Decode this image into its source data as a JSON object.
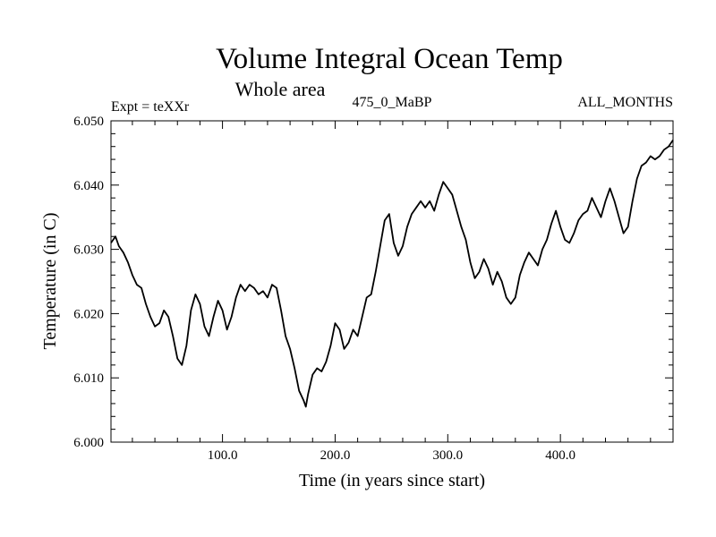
{
  "chart_data": {
    "type": "line",
    "title": "Volume Integral Ocean Temp",
    "subtitle": "Whole area",
    "expt_label": "Expt = teXXr",
    "run_label": "475_0_MaBP",
    "months_label": "ALL_MONTHS",
    "xlabel": "Time (in years since start)",
    "ylabel": "Temperature (in C)",
    "xlim": [
      1,
      500
    ],
    "ylim": [
      6.0,
      6.05
    ],
    "x_ticks": [
      100,
      200,
      300,
      400
    ],
    "x_tick_labels": [
      "100.0",
      "200.0",
      "300.0",
      "400.0"
    ],
    "y_ticks": [
      6.0,
      6.01,
      6.02,
      6.03,
      6.04,
      6.05
    ],
    "y_tick_labels": [
      "6.000",
      "6.010",
      "6.020",
      "6.030",
      "6.040",
      "6.050"
    ],
    "series": [
      {
        "name": "teXXr",
        "x": [
          1,
          5,
          8,
          12,
          16,
          20,
          24,
          28,
          32,
          36,
          40,
          44,
          48,
          52,
          56,
          60,
          64,
          68,
          72,
          76,
          80,
          84,
          88,
          92,
          96,
          100,
          104,
          108,
          112,
          116,
          120,
          124,
          128,
          132,
          136,
          140,
          144,
          148,
          152,
          156,
          160,
          164,
          168,
          172,
          174,
          176,
          180,
          184,
          188,
          192,
          196,
          200,
          204,
          208,
          212,
          216,
          220,
          224,
          228,
          232,
          236,
          240,
          244,
          248,
          252,
          256,
          260,
          264,
          268,
          272,
          276,
          280,
          284,
          288,
          292,
          296,
          300,
          304,
          308,
          312,
          316,
          320,
          324,
          328,
          332,
          336,
          340,
          344,
          348,
          352,
          356,
          360,
          364,
          368,
          372,
          376,
          380,
          384,
          388,
          392,
          396,
          400,
          404,
          408,
          412,
          416,
          420,
          424,
          428,
          432,
          436,
          440,
          444,
          448,
          452,
          456,
          460,
          464,
          468,
          472,
          476,
          480,
          484,
          488,
          492,
          496,
          500
        ],
        "values": [
          6.031,
          6.032,
          6.0305,
          6.0295,
          6.028,
          6.026,
          6.0245,
          6.024,
          6.0215,
          6.0195,
          6.018,
          6.0185,
          6.0205,
          6.0195,
          6.0165,
          6.013,
          6.012,
          6.015,
          6.0205,
          6.023,
          6.0215,
          6.018,
          6.0165,
          6.0195,
          6.022,
          6.0205,
          6.0175,
          6.0195,
          6.0225,
          6.0245,
          6.0235,
          6.0245,
          6.024,
          6.023,
          6.0235,
          6.0225,
          6.0245,
          6.024,
          6.0205,
          6.0165,
          6.0145,
          6.0115,
          6.008,
          6.0065,
          6.0055,
          6.0075,
          6.0105,
          6.0115,
          6.011,
          6.0125,
          6.015,
          6.0185,
          6.0175,
          6.0145,
          6.0155,
          6.0175,
          6.0165,
          6.0195,
          6.0225,
          6.023,
          6.0265,
          6.0305,
          6.0345,
          6.0355,
          6.031,
          6.029,
          6.0305,
          6.0335,
          6.0355,
          6.0365,
          6.0375,
          6.0365,
          6.0375,
          6.036,
          6.0385,
          6.0405,
          6.0395,
          6.0385,
          6.036,
          6.0335,
          6.0315,
          6.028,
          6.0255,
          6.0265,
          6.0285,
          6.027,
          6.0245,
          6.0265,
          6.025,
          6.0225,
          6.0215,
          6.0225,
          6.026,
          6.028,
          6.0295,
          6.0285,
          6.0275,
          6.03,
          6.0315,
          6.034,
          6.036,
          6.0335,
          6.0315,
          6.031,
          6.0325,
          6.0345,
          6.0355,
          6.036,
          6.038,
          6.0365,
          6.035,
          6.0375,
          6.0395,
          6.0375,
          6.035,
          6.0325,
          6.0335,
          6.0375,
          6.041,
          6.043,
          6.0435,
          6.0445,
          6.044,
          6.0445,
          6.0455,
          6.046,
          6.047
        ]
      }
    ]
  }
}
